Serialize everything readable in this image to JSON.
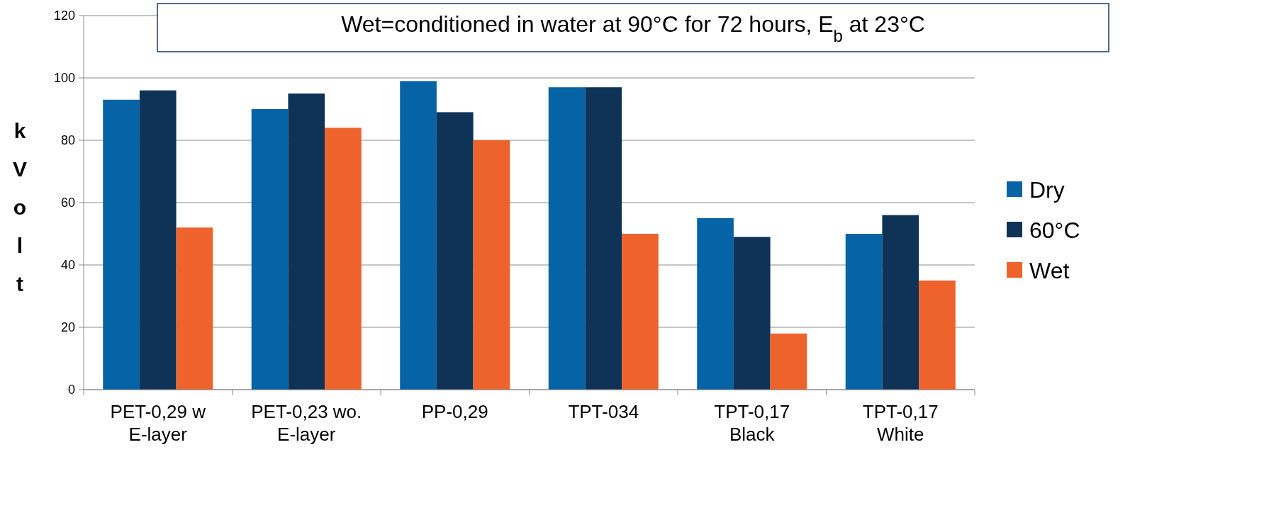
{
  "chart_data": {
    "type": "bar",
    "ylabel": "kVolt",
    "annotations": [
      "Wet=conditioned in water at 90°C for 72 hours, E$_{b}$ at 23°C"
    ],
    "categories": [
      "PET-0,29 w\nE-layer",
      "PET-0,23 wo.\nE-layer",
      "PP-0,29",
      "TPT-034",
      "TPT-0,17\nBlack",
      "TPT-0,17\nWhite"
    ],
    "series": [
      {
        "name": "Dry",
        "color": "#0563a6",
        "values": [
          93,
          90,
          99,
          97,
          55,
          50
        ]
      },
      {
        "name": "60°C",
        "color": "#0f3357",
        "values": [
          96,
          95,
          89,
          97,
          49,
          56
        ]
      },
      {
        "name": "Wet",
        "color": "#ee622b",
        "values": [
          52,
          84,
          80,
          50,
          18,
          35
        ]
      }
    ],
    "ylim": [
      0,
      120
    ],
    "yticks": [
      0,
      20,
      40,
      60,
      80,
      100,
      120
    ],
    "grid": "y",
    "legend": "right"
  }
}
